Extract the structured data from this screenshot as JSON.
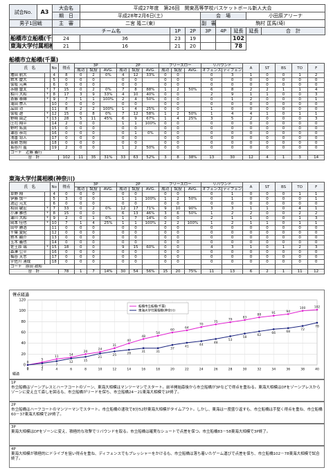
{
  "header": {
    "match_no_label": "試合No.",
    "match_no": "A3",
    "event_label": "大会名",
    "event": "平成27年度　第26回　関東高等学校バスケットボール新人大会",
    "date_label": "期　日",
    "date": "平成28年2月6日(土)",
    "venue_label": "会　場",
    "venue": "小田原アリーナ",
    "round": "男子1回戦",
    "referee_label": "主　審",
    "referee": "二宮 隆二(東)",
    "umpire_label": "副　審",
    "umpire": "駒村 匡馬(埼)",
    "team_label": "チーム名",
    "period_labels": [
      "1P",
      "2P",
      "3P",
      "4P",
      "延長",
      "延長"
    ],
    "total_label": "合　計",
    "teams": [
      {
        "name": "船橋市立船橋(千葉)",
        "periods": [
          24,
          36,
          23,
          19,
          null,
          null
        ],
        "total": 102
      },
      {
        "name": "東海大学付属相模(神奈川)",
        "periods": [
          21,
          16,
          21,
          20,
          null,
          null
        ],
        "total": 78
      }
    ]
  },
  "stat_headers": {
    "name": "氏　名",
    "no": "No",
    "pts": "得点",
    "groups": [
      "3P",
      "2P",
      "フリースロー"
    ],
    "made": "成功",
    "att": "試投",
    "avg": "AVG.",
    "reb": "リバウンド",
    "off": "オフェンス",
    "def": "ディフェンス",
    "others": [
      "A",
      "ST",
      "BS",
      "TO",
      "F"
    ]
  },
  "teams": [
    {
      "title": "船橋市立船橋(千葉)",
      "players": [
        [
          "増田 航大",
          null,
          4,
          8,
          0,
          2,
          "0%",
          4,
          12,
          "33%",
          0,
          0,
          null,
          0,
          3,
          1,
          0,
          0,
          1,
          2
        ],
        [
          "鈴木 慶大",
          null,
          5,
          0,
          0,
          0,
          null,
          0,
          0,
          null,
          0,
          0,
          null,
          0,
          0,
          0,
          0,
          0,
          0,
          0
        ],
        [
          "保坂 元典",
          null,
          6,
          0,
          0,
          0,
          null,
          0,
          0,
          null,
          0,
          0,
          null,
          0,
          0,
          0,
          0,
          0,
          0,
          0
        ],
        [
          "赤穂 雷太",
          "*",
          7,
          15,
          0,
          2,
          "0%",
          7,
          8,
          "88%",
          1,
          2,
          "50%",
          6,
          8,
          2,
          2,
          1,
          1,
          4
        ],
        [
          "相川 大和",
          "*",
          8,
          17,
          3,
          9,
          "33%",
          4,
          10,
          "40%",
          0,
          0,
          null,
          2,
          9,
          1,
          1,
          0,
          0,
          3
        ],
        [
          "斎藤 泰輝",
          "*",
          9,
          7,
          1,
          1,
          "100%",
          2,
          4,
          "50%",
          0,
          0,
          null,
          0,
          1,
          2,
          0,
          0,
          0,
          1
        ],
        [
          "滝田 崇人",
          null,
          10,
          0,
          0,
          0,
          null,
          0,
          0,
          null,
          0,
          0,
          null,
          0,
          0,
          0,
          0,
          0,
          0,
          0
        ],
        [
          "品田 功",
          null,
          11,
          8,
          2,
          2,
          "100%",
          1,
          4,
          "25%",
          0,
          0,
          null,
          1,
          0,
          0,
          0,
          0,
          0,
          0
        ],
        [
          "保坂 遼",
          "*",
          12,
          15,
          0,
          8,
          "0%",
          7,
          12,
          "58%",
          1,
          2,
          "50%",
          1,
          4,
          4,
          1,
          0,
          1,
          1
        ],
        [
          "野崎 由之",
          "*",
          13,
          28,
          5,
          11,
          "45%",
          6,
          9,
          "67%",
          1,
          4,
          "25%",
          3,
          5,
          2,
          0,
          0,
          0,
          3
        ],
        [
          "庄司 翔平",
          null,
          14,
          2,
          0,
          0,
          null,
          1,
          1,
          "100%",
          0,
          0,
          null,
          0,
          0,
          0,
          0,
          0,
          0,
          0
        ],
        [
          "野村 拓真",
          null,
          15,
          0,
          0,
          0,
          null,
          0,
          0,
          null,
          0,
          0,
          null,
          0,
          0,
          0,
          0,
          0,
          0,
          0
        ],
        [
          "瀬谷 恭司",
          null,
          16,
          0,
          0,
          0,
          null,
          0,
          1,
          "0%",
          0,
          0,
          null,
          0,
          0,
          0,
          0,
          0,
          0,
          0
        ],
        [
          "浅香 将人",
          null,
          17,
          0,
          0,
          0,
          null,
          0,
          0,
          null,
          0,
          0,
          null,
          0,
          0,
          0,
          0,
          0,
          0,
          0
        ],
        [
          "長嶺 悠翔",
          null,
          18,
          0,
          0,
          0,
          null,
          0,
          0,
          null,
          0,
          0,
          null,
          0,
          0,
          0,
          0,
          0,
          0,
          0
        ],
        [
          "長谷川 嵐",
          null,
          19,
          2,
          0,
          0,
          null,
          1,
          2,
          "50%",
          0,
          0,
          null,
          0,
          0,
          0,
          0,
          0,
          0,
          0
        ]
      ],
      "coach_label": "コーチ",
      "coach": "近藤 義行",
      "total_label": "合　計",
      "total": [
        102,
        11,
        35,
        "31%",
        33,
        63,
        "52%",
        3,
        8,
        "38%",
        13,
        30,
        12,
        4,
        1,
        3,
        14
      ]
    },
    {
      "title": "東海大学付属相模(神奈川)",
      "players": [
        [
          "草野 翔",
          null,
          4,
          0,
          0,
          0,
          null,
          0,
          0,
          null,
          0,
          0,
          null,
          0,
          1,
          0,
          0,
          0,
          1,
          1
        ],
        [
          "伊藤 慎一",
          null,
          5,
          3,
          0,
          0,
          null,
          1,
          1,
          "100%",
          1,
          2,
          "50%",
          0,
          1,
          0,
          0,
          0,
          0,
          1
        ],
        [
          "渡辺 元太",
          null,
          6,
          0,
          0,
          0,
          null,
          0,
          0,
          null,
          0,
          0,
          null,
          0,
          0,
          0,
          0,
          0,
          0,
          0
        ],
        [
          "和田 敏宏",
          "*",
          7,
          33,
          0,
          2,
          "0%",
          12,
          17,
          "71%",
          9,
          10,
          "90%",
          3,
          3,
          1,
          1,
          0,
          4,
          1
        ],
        [
          "小澤 雅也",
          "*",
          8,
          15,
          0,
          0,
          null,
          6,
          13,
          "46%",
          3,
          6,
          "50%",
          1,
          2,
          2,
          0,
          0,
          2,
          2
        ],
        [
          "瀬川 大和",
          "*",
          9,
          2,
          0,
          1,
          "0%",
          1,
          7,
          "14%",
          0,
          0,
          null,
          2,
          1,
          1,
          0,
          0,
          1,
          3
        ],
        [
          "岡本 佳也",
          "*",
          10,
          7,
          1,
          4,
          "25%",
          1,
          1,
          "100%",
          2,
          2,
          "100%",
          1,
          2,
          1,
          1,
          0,
          1,
          1
        ],
        [
          "田中 勝浩",
          null,
          11,
          0,
          0,
          0,
          null,
          0,
          0,
          null,
          0,
          0,
          null,
          0,
          0,
          0,
          0,
          0,
          0,
          0
        ],
        [
          "千葉 夏紀",
          null,
          12,
          0,
          0,
          0,
          null,
          0,
          0,
          null,
          0,
          0,
          null,
          0,
          0,
          0,
          0,
          0,
          0,
          0
        ],
        [
          "鈴木 顕介",
          null,
          13,
          0,
          0,
          0,
          null,
          0,
          0,
          null,
          0,
          0,
          null,
          0,
          0,
          0,
          0,
          0,
          0,
          0
        ],
        [
          "玉木 義也",
          null,
          14,
          0,
          0,
          0,
          null,
          0,
          0,
          null,
          0,
          0,
          null,
          0,
          0,
          0,
          0,
          0,
          0,
          0
        ],
        [
          "佐土原 瑞",
          "*",
          15,
          18,
          0,
          0,
          null,
          9,
          15,
          "60%",
          0,
          0,
          null,
          4,
          3,
          1,
          0,
          1,
          2,
          3
        ],
        [
          "森澤 公平",
          null,
          16,
          0,
          0,
          0,
          null,
          0,
          0,
          null,
          0,
          0,
          null,
          0,
          0,
          0,
          0,
          0,
          0,
          0
        ],
        [
          "梅谷 天志",
          null,
          17,
          0,
          0,
          0,
          null,
          0,
          0,
          null,
          0,
          0,
          null,
          0,
          0,
          0,
          0,
          0,
          0,
          0
        ],
        [
          "宇佐川 湧成",
          null,
          18,
          0,
          0,
          0,
          null,
          0,
          0,
          null,
          0,
          0,
          null,
          0,
          0,
          0,
          0,
          0,
          0,
          0
        ]
      ],
      "coach_label": "コーチ",
      "coach": "原田 政和",
      "total_label": "合　計",
      "total": [
        78,
        1,
        7,
        "14%",
        30,
        54,
        "56%",
        15,
        20,
        "75%",
        11,
        13,
        6,
        2,
        1,
        11,
        12
      ]
    }
  ],
  "chart_data": {
    "type": "line",
    "title": "得点経過",
    "x_label": "経過",
    "x": [
      0,
      2,
      4,
      6,
      8,
      10,
      12,
      14,
      16,
      18,
      20,
      22,
      24,
      26,
      28,
      30,
      32,
      34,
      36,
      38,
      40
    ],
    "series": [
      {
        "name": "船橋市立船橋(千葉)",
        "color": "#e020d0",
        "values": [
          0,
          5,
          11,
          14,
          20,
          24,
          31,
          40,
          48,
          54,
          60,
          64,
          70,
          75,
          79,
          83,
          88,
          91,
          94,
          100,
          102
        ]
      },
      {
        "name": "東海大学付属相模(神奈川)",
        "color": "#1a237e",
        "values": [
          0,
          3,
          7,
          12,
          15,
          21,
          25,
          28,
          31,
          31,
          37,
          41,
          44,
          48,
          53,
          58,
          62,
          66,
          68,
          72,
          78
        ]
      }
    ],
    "xlim": [
      0,
      40
    ],
    "xticks": [
      0,
      2,
      4,
      6,
      8,
      10,
      12,
      14,
      16,
      18,
      20,
      22,
      24,
      26,
      28,
      30,
      32,
      34,
      36,
      38,
      40
    ],
    "ylim": [
      0,
      120
    ],
    "yticks": [
      0,
      20,
      40,
      60,
      80,
      100,
      120
    ],
    "grid": true
  },
  "commentary": [
    {
      "period": "1P",
      "text": "市立船橋はゾーンプレスとハーフコートのゾーン、東海大相模はマンツーマンでスタート。前半開始直後から市立船橋が3Pなどで得点を重ねる。東海大相模はDFをゾーンプレスからゾーンに変え立て直しを図るも、市立船橋がリードを保ち、市立船橋24－21東海大相模で1P終了。"
    },
    {
      "period": "2P",
      "text": "市立船橋はハーフコートのマンツーマンでスタート。市立船橋の速攻で8分52秒東海大相模がタイムアウト。しかし、東海は一度盛り返すも、市立船橋は手堅く得点を重ね、市立船橋60－37東海大相模で2P終了。"
    },
    {
      "period": "3P",
      "text": "東海大相模はDFをゾーンに変え、積極的な攻撃でリバウンドを取る。市立船橋は確実なシュートで点差を保つ。市立船橋83－58東海大相模で3P終了。"
    },
    {
      "period": "4P",
      "text": "東海大相模が積極的にドライブを狙い得点を重ね、ディフェンスでもプレッシャーをかけるも、市立船橋は落ち着いたゲーム運びで点差を保ち、市立船橋102－78東海大相模で試合終了。"
    }
  ]
}
